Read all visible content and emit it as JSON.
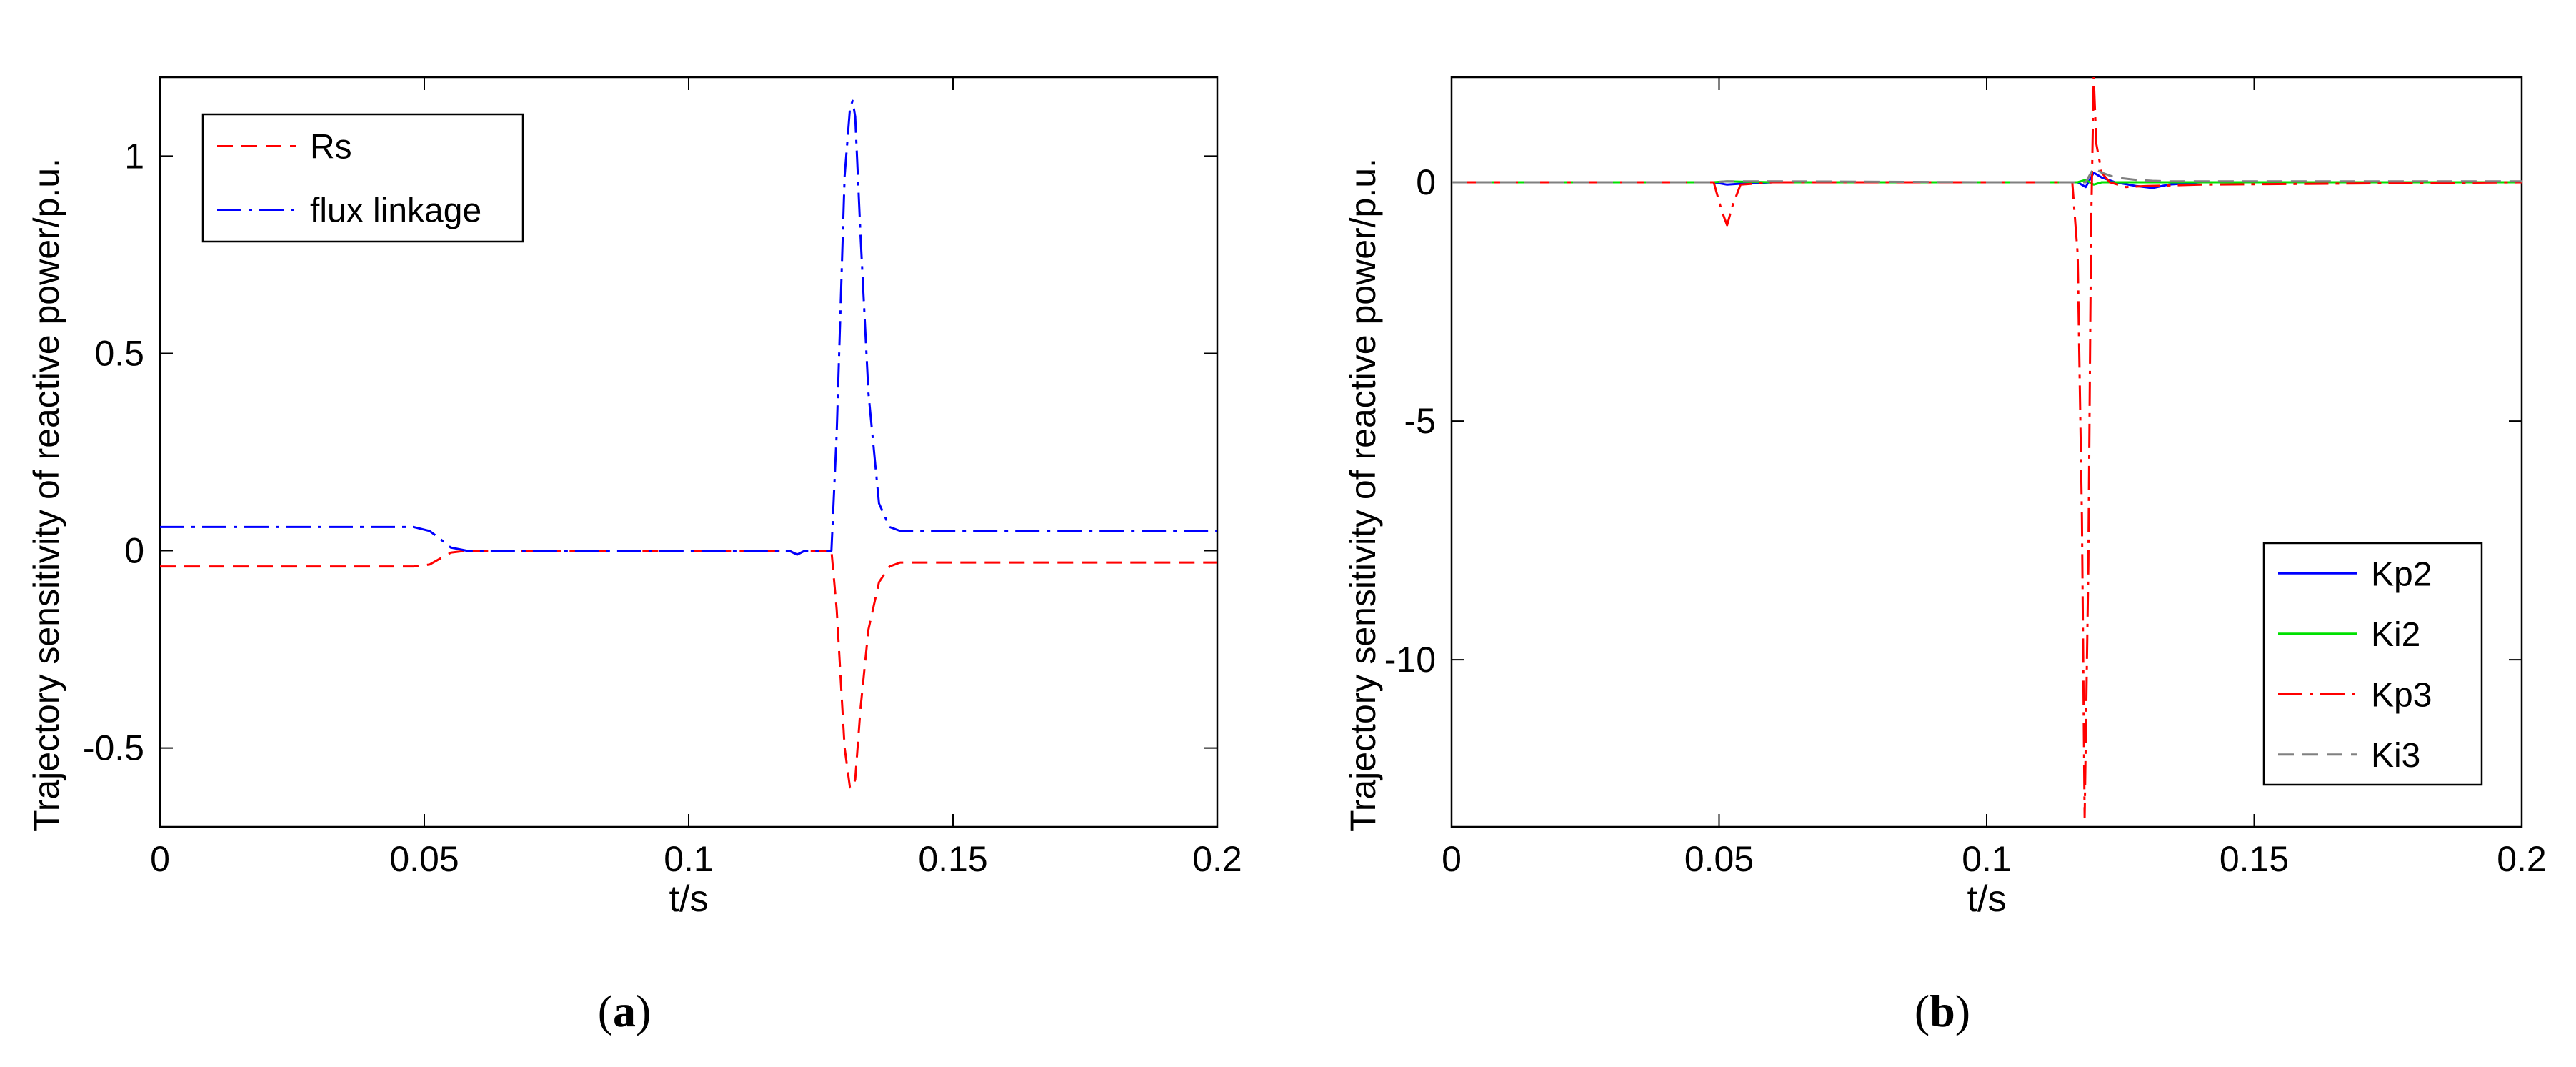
{
  "panels": [
    {
      "tag": "a",
      "tag_open": "(",
      "tag_close": ")",
      "chart_data": {
        "type": "line",
        "xlabel": "t/s",
        "ylabel": "Trajectory sensitivity of reactive power/p.u.",
        "xlim": [
          0,
          0.2
        ],
        "ylim": [
          -0.7,
          1.2
        ],
        "xticks": [
          0,
          0.05,
          0.1,
          0.15,
          0.2
        ],
        "xtick_labels": [
          "0",
          "0.05",
          "0.1",
          "0.15",
          "0.2"
        ],
        "yticks": [
          -0.5,
          0,
          0.5,
          1
        ],
        "ytick_labels": [
          "-0.5",
          "0",
          "0.5",
          "1"
        ],
        "grid": false,
        "legend_position": "top-left",
        "series": [
          {
            "name": "Rs",
            "color": "#ff0000",
            "dash": "dashed",
            "x": [
              0,
              0.048,
              0.051,
              0.053,
              0.055,
              0.058,
              0.1,
              0.119,
              0.1205,
              0.122,
              0.127,
              0.128,
              0.1295,
              0.1305,
              0.131,
              0.1315,
              0.1325,
              0.134,
              0.136,
              0.138,
              0.14,
              0.15,
              0.2
            ],
            "y": [
              -0.04,
              -0.04,
              -0.035,
              -0.02,
              -0.005,
              0,
              0,
              0,
              -0.01,
              0,
              0,
              -0.15,
              -0.5,
              -0.6,
              -0.6,
              -0.58,
              -0.4,
              -0.2,
              -0.08,
              -0.04,
              -0.03,
              -0.03,
              -0.03
            ]
          },
          {
            "name": "flux linkage",
            "color": "#0000ff",
            "dash": "dashdot",
            "x": [
              0,
              0.048,
              0.051,
              0.053,
              0.055,
              0.058,
              0.1,
              0.119,
              0.1205,
              0.122,
              0.127,
              0.128,
              0.1295,
              0.1305,
              0.131,
              0.1315,
              0.1325,
              0.134,
              0.136,
              0.138,
              0.14,
              0.15,
              0.2
            ],
            "y": [
              0.06,
              0.06,
              0.05,
              0.03,
              0.008,
              0,
              0,
              0,
              -0.01,
              0,
              0,
              0.3,
              0.95,
              1.12,
              1.14,
              1.1,
              0.8,
              0.4,
              0.12,
              0.06,
              0.05,
              0.05,
              0.05
            ]
          }
        ]
      }
    },
    {
      "tag": "b",
      "tag_open": "(",
      "tag_close": ")",
      "chart_data": {
        "type": "line",
        "xlabel": "t/s",
        "ylabel": "Trajectory sensitivity of reactive power/p.u.",
        "xlim": [
          0,
          0.2
        ],
        "ylim": [
          -13.5,
          2.2
        ],
        "xticks": [
          0,
          0.05,
          0.1,
          0.15,
          0.2
        ],
        "xtick_labels": [
          "0",
          "0.05",
          "0.1",
          "0.15",
          "0.2"
        ],
        "yticks": [
          -10,
          -5,
          0
        ],
        "ytick_labels": [
          "-10",
          "-5",
          "0"
        ],
        "grid": false,
        "legend_position": "bottom-right",
        "series": [
          {
            "name": "Kp2",
            "color": "#0000ff",
            "dash": "solid",
            "x": [
              0,
              0.049,
              0.0515,
              0.054,
              0.06,
              0.1,
              0.117,
              0.1185,
              0.12,
              0.1215,
              0.124,
              0.128,
              0.131,
              0.134,
              0.14,
              0.16,
              0.2
            ],
            "y": [
              0,
              0,
              -0.05,
              -0.03,
              0,
              0,
              0,
              -0.1,
              0.2,
              0.1,
              0,
              -0.08,
              -0.12,
              -0.05,
              0,
              0,
              0
            ]
          },
          {
            "name": "Ki2",
            "color": "#00e000",
            "dash": "solid",
            "x": [
              0,
              0.049,
              0.0515,
              0.054,
              0.06,
              0.1,
              0.117,
              0.1185,
              0.12,
              0.1215,
              0.124,
              0.128,
              0.131,
              0.134,
              0.14,
              0.16,
              0.2
            ],
            "y": [
              0,
              0,
              0.02,
              0.01,
              0,
              0,
              0,
              0.05,
              -0.05,
              0,
              0,
              0,
              0,
              0,
              0,
              0,
              0
            ]
          },
          {
            "name": "Kp3",
            "color": "#ff0000",
            "dash": "dashdot",
            "x": [
              0,
              0.049,
              0.0505,
              0.0515,
              0.0525,
              0.054,
              0.06,
              0.1,
              0.116,
              0.117,
              0.1178,
              0.1183,
              0.119,
              0.1195,
              0.12,
              0.1205,
              0.121,
              0.1215,
              0.123,
              0.126,
              0.13,
              0.14,
              0.2
            ],
            "y": [
              0,
              0,
              -0.6,
              -0.9,
              -0.5,
              -0.05,
              0,
              0,
              0,
              -1.5,
              -7,
              -13.3,
              -8,
              -1,
              2.2,
              0.8,
              0.5,
              0.2,
              0,
              -0.1,
              -0.08,
              -0.05,
              0
            ]
          },
          {
            "name": "Ki3",
            "color": "#808080",
            "dash": "dashed",
            "x": [
              0,
              0.049,
              0.0515,
              0.054,
              0.06,
              0.1,
              0.117,
              0.1185,
              0.12,
              0.1215,
              0.124,
              0.128,
              0.131,
              0.134,
              0.14,
              0.16,
              0.2
            ],
            "y": [
              0,
              0,
              0.02,
              0.02,
              0.02,
              0,
              0,
              0,
              0.3,
              0.2,
              0.1,
              0.05,
              0.03,
              0.02,
              0.02,
              0.02,
              0.02
            ]
          }
        ]
      }
    }
  ]
}
